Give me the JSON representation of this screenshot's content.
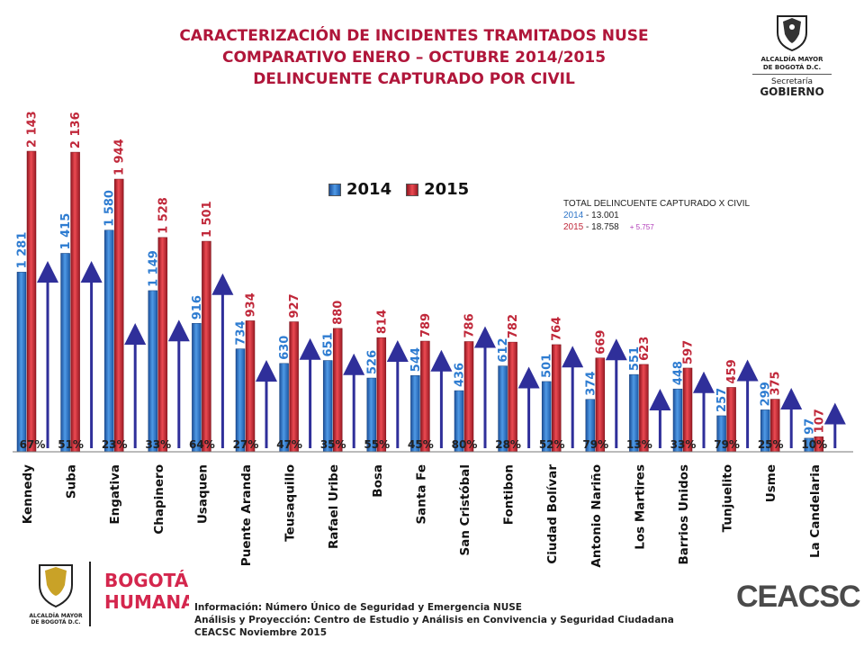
{
  "title": {
    "line1": "CARACTERIZACIÓN DE INCIDENTES TRAMITADOS NUSE",
    "line2": "COMPARATIVO ENERO – OCTUBRE   2014/2015",
    "line3": "DELINCUENTE CAPTURADO POR CIVIL"
  },
  "logo_top": {
    "line1": "ALCALDÍA MAYOR",
    "line2": "DE BOGOTÁ D.C.",
    "line3": "Secretaría",
    "line4": "GOBIERNO"
  },
  "legend": {
    "label_2014": "2014",
    "label_2015": "2015"
  },
  "totals": {
    "heading": "TOTAL DELINCUENTE CAPTURADO X CIVIL",
    "year_2014": "2014",
    "sep_2014": " -  13.001",
    "year_2015": "2015",
    "sep_2015": " -  18.758",
    "diff": "+ 5.757"
  },
  "footer": {
    "line1": "Información: Número Único de Seguridad y Emergencia NUSE",
    "line2": "Análisis y Proyección: Centro de Estudio y Análisis en Convivencia y Seguridad Ciudadana",
    "line3": "CEACSC  Noviembre  2015"
  },
  "bottom_logos": {
    "alcaldia_1": "ALCALDÍA MAYOR",
    "alcaldia_2": "DE BOGOTÁ D.C.",
    "bogota_1": "BOGOTÁ",
    "bogota_2": "HUMANA",
    "ceacsc": "CEACSC"
  },
  "colors": {
    "c2014": "#2e7cd1",
    "c2015": "#d22a34",
    "arrow": "#2f2f9a",
    "label2014": "#2e7cd1",
    "label2015": "#c0283a"
  },
  "chart_data": {
    "type": "bar",
    "categories": [
      "Kennedy",
      "Suba",
      "Engativa",
      "Chapinero",
      "Usaquen",
      "Puente Aranda",
      "Teusaquillo",
      "Rafael Uribe",
      "Bosa",
      "Santa Fe",
      "San Cristóbal",
      "Fontibon",
      "Ciudad Bolívar",
      "Antonio Nariño",
      "Los Martires",
      "Barrios Unidos",
      "Tunjuelito",
      "Usme",
      "La Candelaria"
    ],
    "series": [
      {
        "name": "2014",
        "values": [
          1281,
          1415,
          1580,
          1149,
          916,
          734,
          630,
          651,
          526,
          544,
          436,
          612,
          501,
          374,
          551,
          448,
          257,
          299,
          97
        ],
        "labels": [
          "1 281",
          "1 415",
          "1 580",
          "1 149",
          "916",
          "734",
          "630",
          "651",
          "526",
          "544",
          "436",
          "612",
          "501",
          "374",
          "551",
          "448",
          "257",
          "299",
          "97"
        ]
      },
      {
        "name": "2015",
        "values": [
          2143,
          2136,
          1944,
          1528,
          1501,
          934,
          927,
          880,
          814,
          789,
          786,
          782,
          764,
          669,
          623,
          597,
          459,
          375,
          107
        ],
        "labels": [
          "2 143",
          "2 136",
          "1 944",
          "1 528",
          "1 501",
          "934",
          "927",
          "880",
          "814",
          "789",
          "786",
          "782",
          "764",
          "669",
          "623",
          "597",
          "459",
          "375",
          "107"
        ]
      }
    ],
    "change_labels": [
      "67%",
      "51%",
      "23%",
      "33%",
      "64%",
      "27%",
      "47%",
      "35%",
      "55%",
      "45%",
      "80%",
      "28%",
      "52%",
      "79%",
      "13%",
      "33%",
      "79%",
      "25%",
      "10%"
    ],
    "ylim": [
      0,
      2500
    ]
  }
}
